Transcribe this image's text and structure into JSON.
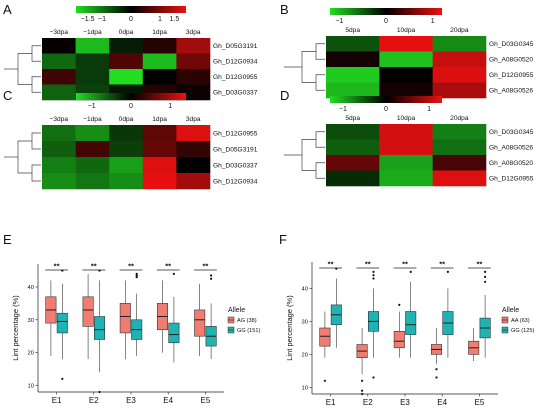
{
  "chart_data": [
    {
      "panel": "A",
      "type": "heatmap",
      "columns": [
        "−3dpa",
        "−1dpa",
        "0dpa",
        "1dpa",
        "3dpa"
      ],
      "rows": [
        "Gh_D05G3191",
        "Gh_D12G0934",
        "Gh_D12G0955",
        "Gh_D03G0337"
      ],
      "values": [
        [
          0.05,
          -1.6,
          -0.25,
          0.3,
          1.3
        ],
        [
          -0.9,
          -0.5,
          0.65,
          -1.6,
          0.9
        ],
        [
          0.5,
          -0.5,
          -1.9,
          0.0,
          0.35
        ],
        [
          -0.85,
          -0.55,
          -0.2,
          0.3,
          0.1
        ]
      ],
      "colorbar": {
        "ticks": [
          "−1.5",
          "−1",
          "0",
          "1",
          "1.5"
        ],
        "min": -1.9,
        "max": 1.9,
        "low": "#22dd22",
        "mid": "#000000",
        "high": "#ee1111"
      }
    },
    {
      "panel": "B",
      "type": "heatmap",
      "columns": [
        "5dpa",
        "10dpa",
        "20dpa"
      ],
      "rows": [
        "Gh_D03G0345",
        "Gh_A08G0520",
        "Gh_D12G0955",
        "Gh_A08G0526"
      ],
      "values": [
        [
          -0.45,
          1.15,
          -0.75
        ],
        [
          0.1,
          -1.05,
          1.0
        ],
        [
          -1.1,
          0.0,
          1.1
        ],
        [
          -1.0,
          0.1,
          0.85
        ]
      ],
      "colorbar": {
        "ticks": [
          "−1",
          "0",
          "1"
        ],
        "min": -1.2,
        "max": 1.2,
        "low": "#22dd22",
        "mid": "#000000",
        "high": "#ee1111"
      }
    },
    {
      "panel": "C",
      "type": "heatmap",
      "columns": [
        "−3dpa",
        "−1dpa",
        "0dpa",
        "1dpa",
        "3dpa"
      ],
      "rows": [
        "Gh_D12G0955",
        "Gh_D05G3191",
        "Gh_D03G0337",
        "Gh_D12G0934"
      ],
      "values": [
        [
          -0.7,
          -0.9,
          -0.35,
          0.55,
          1.3
        ],
        [
          -0.6,
          0.4,
          -0.4,
          0.6,
          0.3
        ],
        [
          -0.8,
          -0.65,
          -1.0,
          1.3,
          0.0
        ],
        [
          -0.9,
          -0.75,
          -0.9,
          1.35,
          0.95
        ]
      ],
      "colorbar": {
        "ticks": [
          "−1",
          "0",
          "1"
        ],
        "min": -1.4,
        "max": 1.4,
        "low": "#22dd22",
        "mid": "#000000",
        "high": "#ee1111"
      }
    },
    {
      "panel": "D",
      "type": "heatmap",
      "columns": [
        "5dpa",
        "10dpa",
        "20dpa"
      ],
      "rows": [
        "Gh_D03G0345",
        "Gh_A08G0526",
        "Gh_A08G0520",
        "Gh_D12G0955"
      ],
      "values": [
        [
          -0.45,
          1.15,
          -0.75
        ],
        [
          -0.55,
          1.15,
          -0.65
        ],
        [
          0.55,
          -0.95,
          0.4
        ],
        [
          -0.25,
          -1.0,
          1.2
        ]
      ],
      "colorbar": {
        "ticks": [
          "−1",
          "0",
          "1"
        ],
        "min": -1.3,
        "max": 1.3,
        "low": "#22dd22",
        "mid": "#000000",
        "high": "#ee1111"
      }
    },
    {
      "panel": "E",
      "type": "box",
      "categories": [
        "E1",
        "E2",
        "E3",
        "E4",
        "E5"
      ],
      "ylabel": "Lint percentage (%)",
      "ylim": [
        8,
        47
      ],
      "yticks": [
        10,
        20,
        30,
        40
      ],
      "significance": [
        "**",
        "**",
        "**",
        "**",
        "**"
      ],
      "legend_title": "Allele",
      "series": [
        {
          "name": "AG (38)",
          "color": "#f07c72",
          "boxes": [
            {
              "min": 19,
              "q1": 29,
              "median": 33,
              "q3": 37,
              "max": 42,
              "outliers": []
            },
            {
              "min": 18,
              "q1": 28,
              "median": 33,
              "q3": 37,
              "max": 44,
              "outliers": []
            },
            {
              "min": 18,
              "q1": 26,
              "median": 31,
              "q3": 35,
              "max": 42,
              "outliers": []
            },
            {
              "min": 20,
              "q1": 27,
              "median": 31,
              "q3": 35,
              "max": 42,
              "outliers": []
            },
            {
              "min": 19,
              "q1": 25,
              "median": 30,
              "q3": 33,
              "max": 41,
              "outliers": []
            }
          ]
        },
        {
          "name": "GG (151)",
          "color": "#1fb3b4",
          "boxes": [
            {
              "min": 18,
              "q1": 26,
              "median": 29.5,
              "q3": 32,
              "max": 41,
              "outliers": [
                45,
                12
              ]
            },
            {
              "min": 14,
              "q1": 24,
              "median": 27,
              "q3": 31,
              "max": 42,
              "outliers": [
                45,
                8
              ]
            },
            {
              "min": 19,
              "q1": 24,
              "median": 27,
              "q3": 30,
              "max": 38,
              "outliers": [
                44,
                43.5,
                43
              ]
            },
            {
              "min": 17,
              "q1": 23,
              "median": 25.5,
              "q3": 29,
              "max": 37,
              "outliers": [
                44
              ]
            },
            {
              "min": 18,
              "q1": 22,
              "median": 25,
              "q3": 28,
              "max": 35,
              "outliers": [
                43.5,
                42.5
              ]
            }
          ]
        }
      ]
    },
    {
      "panel": "F",
      "type": "box",
      "categories": [
        "E1",
        "E2",
        "E3",
        "E4",
        "E5"
      ],
      "ylabel": "Lint percentage (%)",
      "ylim": [
        8,
        48
      ],
      "yticks": [
        10,
        20,
        30,
        40
      ],
      "significance": [
        "**",
        "**",
        "**",
        "**",
        "**"
      ],
      "legend_title": "Allele",
      "series": [
        {
          "name": "AA (63)",
          "color": "#f07c72",
          "boxes": [
            {
              "min": 19,
              "q1": 22.5,
              "median": 25.5,
              "q3": 28,
              "max": 33,
              "outliers": [
                12
              ]
            },
            {
              "min": 14,
              "q1": 19,
              "median": 21,
              "q3": 23,
              "max": 28,
              "outliers": [
                12,
                9,
                8
              ]
            },
            {
              "min": 19,
              "q1": 22,
              "median": 24,
              "q3": 27,
              "max": 33,
              "outliers": [
                35
              ]
            },
            {
              "min": 17,
              "q1": 20,
              "median": 21.5,
              "q3": 23,
              "max": 28,
              "outliers": [
                15.5,
                13
              ]
            },
            {
              "min": 18,
              "q1": 20,
              "median": 22,
              "q3": 24,
              "max": 28,
              "outliers": []
            }
          ]
        },
        {
          "name": "GG (125)",
          "color": "#1fb3b4",
          "boxes": [
            {
              "min": 22,
              "q1": 29,
              "median": 32,
              "q3": 35,
              "max": 43,
              "outliers": [
                46
              ]
            },
            {
              "min": 19,
              "q1": 27,
              "median": 30,
              "q3": 33,
              "max": 40,
              "outliers": [
                45,
                44,
                43,
                13
              ]
            },
            {
              "min": 19,
              "q1": 26,
              "median": 29,
              "q3": 33,
              "max": 42,
              "outliers": [
                45
              ]
            },
            {
              "min": 19,
              "q1": 26,
              "median": 29.5,
              "q3": 33,
              "max": 40,
              "outliers": [
                45
              ]
            },
            {
              "min": 19,
              "q1": 25,
              "median": 28,
              "q3": 31,
              "max": 38,
              "outliers": [
                45,
                43.5,
                42
              ]
            }
          ]
        }
      ]
    }
  ]
}
